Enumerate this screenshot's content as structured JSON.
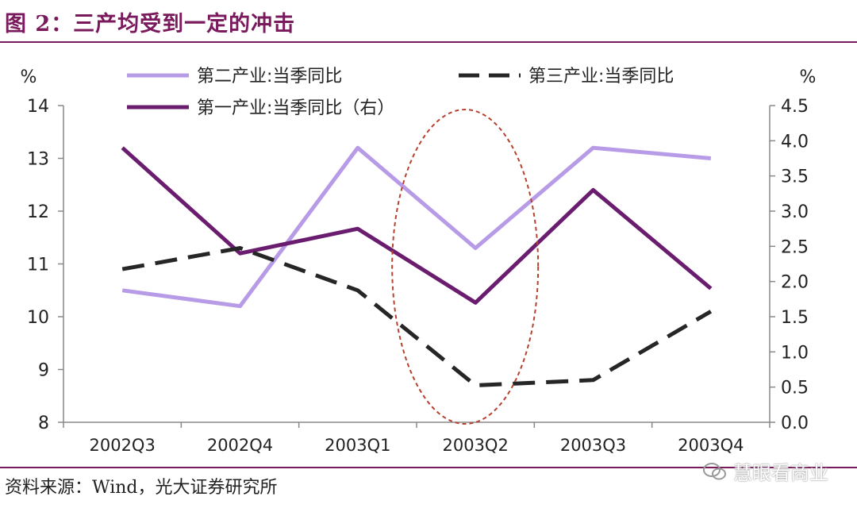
{
  "figure": {
    "title": "图 2：三产均受到一定的冲击",
    "source": "资料来源：Wind，光大证券研究所",
    "watermark": "慧眼看商业",
    "watermark_icon": "wechat-icon"
  },
  "chart_data": {
    "type": "line",
    "title": "",
    "categories": [
      "2002Q3",
      "2002Q4",
      "2003Q1",
      "2003Q2",
      "2003Q3",
      "2003Q4"
    ],
    "y_left": {
      "label": "%",
      "ylim": [
        8,
        14
      ],
      "ticks": [
        "8",
        "9",
        "10",
        "11",
        "12",
        "13",
        "14"
      ]
    },
    "y_right": {
      "label": "%",
      "ylim": [
        0,
        4.5
      ],
      "ticks": [
        "0.0",
        "0.5",
        "1.0",
        "1.5",
        "2.0",
        "2.5",
        "3.0",
        "3.5",
        "4.0",
        "4.5"
      ]
    },
    "grid": false,
    "legend_position": "top",
    "series": [
      {
        "name": "第二产业:当季同比",
        "axis": "left",
        "values": [
          10.5,
          10.2,
          13.2,
          11.3,
          13.2,
          13.0
        ],
        "color": "#b79be6",
        "style": "solid"
      },
      {
        "name": "第三产业:当季同比",
        "axis": "left",
        "values": [
          10.9,
          11.3,
          10.5,
          8.7,
          8.8,
          10.1
        ],
        "color": "#262626",
        "style": "dashed"
      },
      {
        "name": "第一产业:当季同比（右）",
        "axis": "right",
        "values": [
          3.9,
          2.4,
          2.75,
          1.7,
          3.3,
          1.9
        ],
        "color": "#6a1c6e",
        "style": "solid"
      }
    ],
    "annotation": {
      "type": "ellipse",
      "category": "2003Q2",
      "color": "#b5412f",
      "style": "dotted"
    }
  }
}
